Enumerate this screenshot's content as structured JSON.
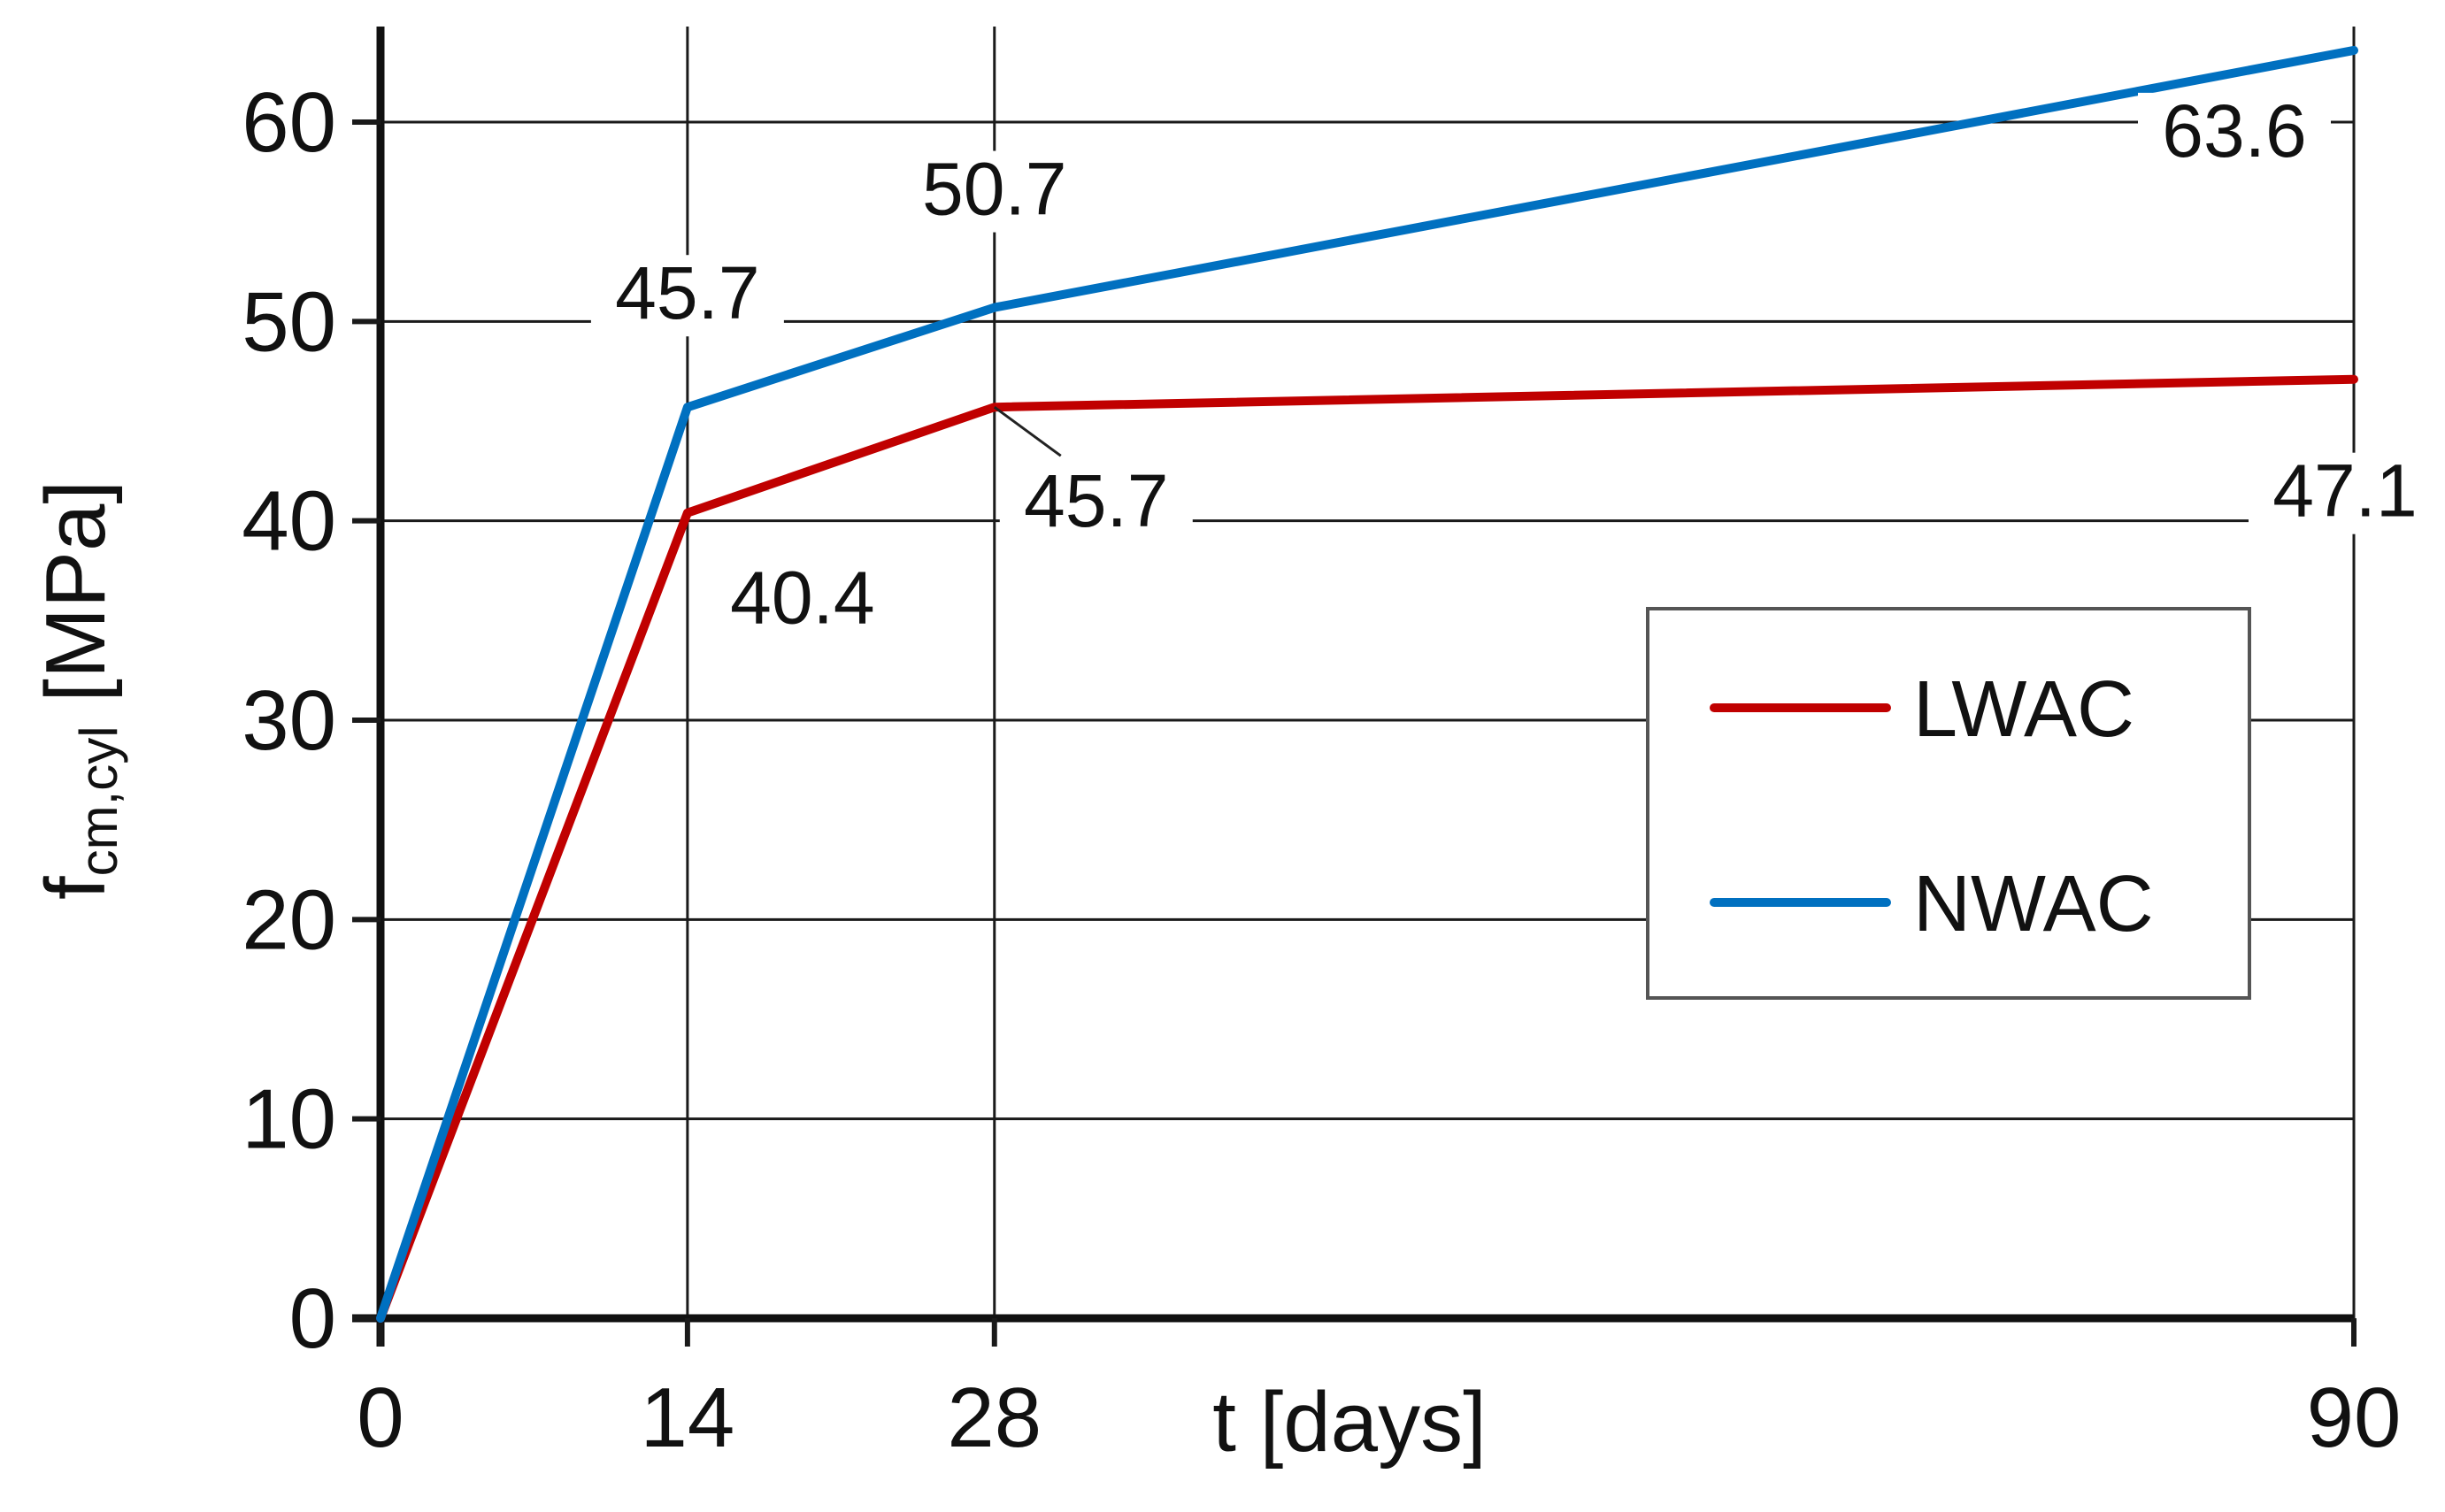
{
  "chart_data": {
    "type": "line",
    "x": [
      0,
      14,
      28,
      90
    ],
    "xlim": [
      0,
      90
    ],
    "ylim": [
      0,
      60
    ],
    "x_ticks": [
      "0",
      "14",
      "28",
      "90"
    ],
    "y_ticks": [
      "0",
      "10",
      "20",
      "30",
      "40",
      "50",
      "60"
    ],
    "xlabel": "t [days]",
    "ylabel": {
      "main": "f",
      "subscript": "cm,cyl",
      "unit": " [MPa]"
    },
    "grid": true,
    "legend": {
      "position": "right-middle"
    },
    "series": [
      {
        "name": "LWAC",
        "color": "#C00000",
        "values": [
          0,
          40.4,
          45.7,
          47.1
        ],
        "data_labels": [
          "",
          "40.4",
          "45.7",
          "47.1"
        ]
      },
      {
        "name": "NWAC",
        "color": "#0070C0",
        "values": [
          0,
          45.7,
          50.7,
          63.6
        ],
        "data_labels": [
          "",
          "45.7",
          "50.7",
          "63.6"
        ]
      }
    ]
  }
}
